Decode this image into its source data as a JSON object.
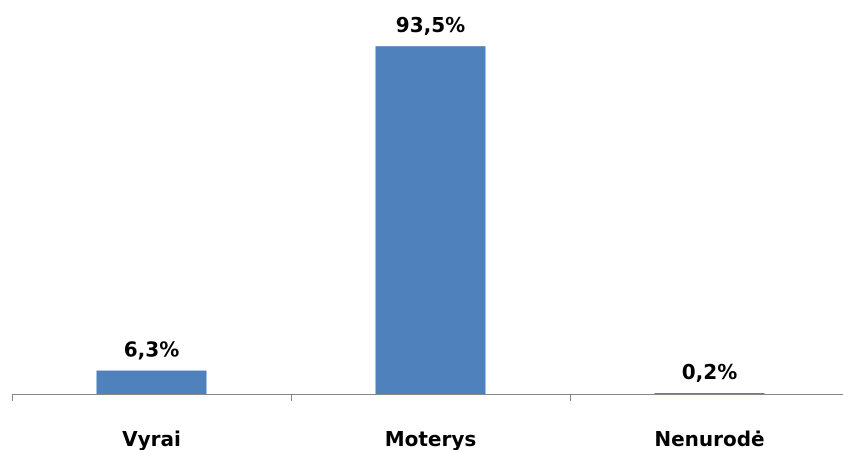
{
  "chart_data": {
    "type": "bar",
    "categories": [
      "Vyrai",
      "Moterys",
      "Nenurodė"
    ],
    "values": [
      6.3,
      93.5,
      0.2
    ],
    "data_labels": [
      "6,3%",
      "93,5%",
      "0,2%"
    ],
    "title": "",
    "xlabel": "",
    "ylabel": "",
    "ylim": [
      0,
      100
    ],
    "grid": false,
    "legend": "none",
    "colors": {
      "bar": "#4f81bd",
      "axis": "#868686"
    }
  }
}
